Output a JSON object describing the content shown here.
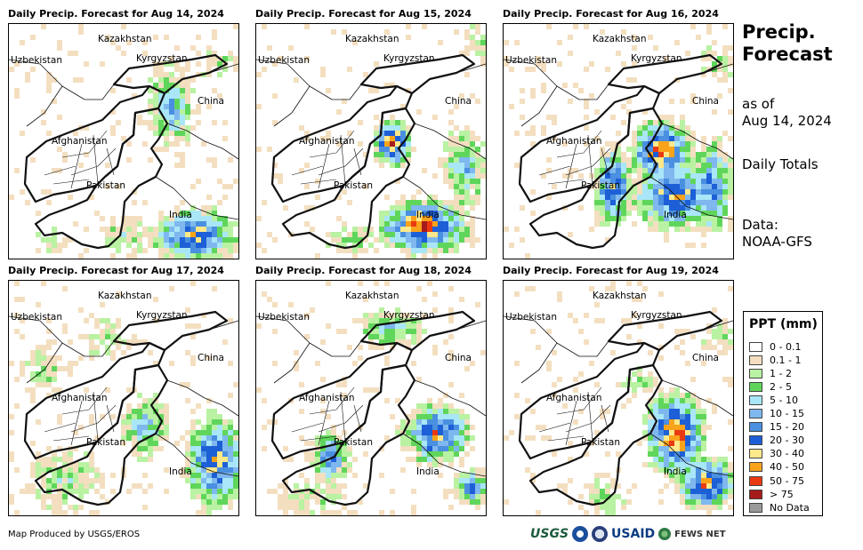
{
  "panels": [
    {
      "title": "Daily Precip. Forecast for Aug 14, 2024"
    },
    {
      "title": "Daily Precip. Forecast for Aug 15, 2024"
    },
    {
      "title": "Daily Precip. Forecast for Aug 16, 2024"
    },
    {
      "title": "Daily Precip. Forecast for Aug 17, 2024"
    },
    {
      "title": "Daily Precip. Forecast for Aug 18, 2024"
    },
    {
      "title": "Daily Precip. Forecast for Aug 19, 2024"
    }
  ],
  "map_labels": {
    "kazakhstan": "Kazakhstan",
    "uzbekistan": "Uzbekistan",
    "kyrgyzstan": "Kyrgyzstan",
    "china": "China",
    "afghanistan": "Afghanistan",
    "pakistan": "Pakistan",
    "india": "India"
  },
  "sidebar": {
    "title": "Precip. Forecast",
    "as_of_line1": "as of",
    "as_of_line2": "Aug 14, 2024",
    "totals": "Daily Totals",
    "data_line1": "Data:",
    "data_line2": "NOAA-GFS"
  },
  "legend": {
    "title": "PPT (mm)",
    "items": [
      {
        "label": "0 - 0.1",
        "color": "#ffffff"
      },
      {
        "label": "0.1 - 1",
        "color": "#f3dfc0"
      },
      {
        "label": "1 - 2",
        "color": "#b9f2a2"
      },
      {
        "label": "2 - 5",
        "color": "#5fd65b"
      },
      {
        "label": "5 - 10",
        "color": "#a8e6f8"
      },
      {
        "label": "10 - 15",
        "color": "#7fb8ee"
      },
      {
        "label": "15 - 20",
        "color": "#4a8fe0"
      },
      {
        "label": "20 - 30",
        "color": "#1d5fd6"
      },
      {
        "label": "30 - 40",
        "color": "#fde88a"
      },
      {
        "label": "40 - 50",
        "color": "#f9a31b"
      },
      {
        "label": "50 - 75",
        "color": "#ea3a12"
      },
      {
        "label": "> 75",
        "color": "#a61b1b"
      },
      {
        "label": "No Data",
        "color": "#9a9a9a"
      }
    ]
  },
  "footer": {
    "credit": "Map Produced by USGS/EROS",
    "logos": {
      "usgs": "USGS",
      "usaid": "USAID",
      "fews": "FEWS NET"
    }
  }
}
